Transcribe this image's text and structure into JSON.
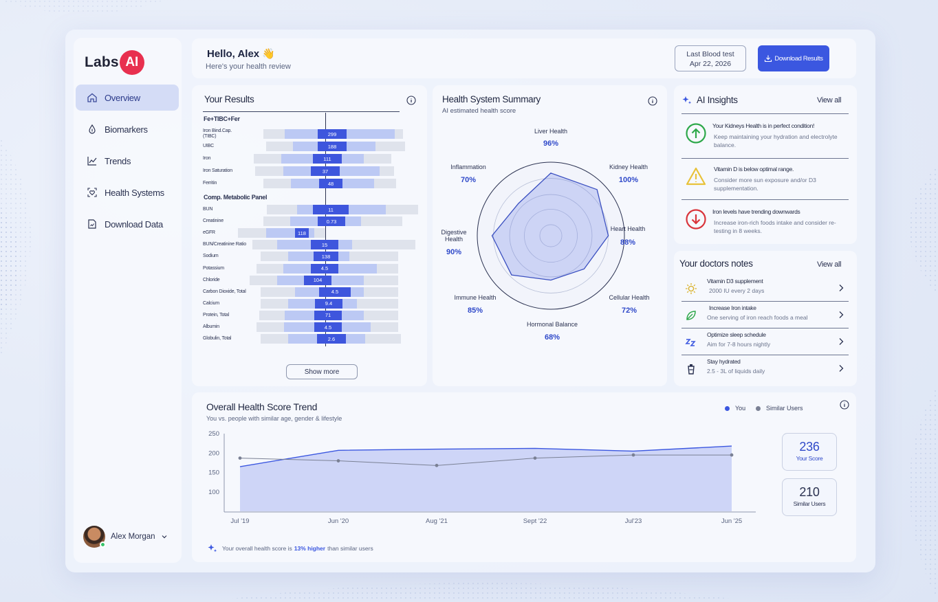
{
  "app": {
    "logo_text": "Labs",
    "logo_badge": "AI"
  },
  "sidebar": {
    "items": [
      {
        "label": "Overview",
        "icon": "home-icon",
        "active": true
      },
      {
        "label": "Biomarkers",
        "icon": "drop-icon"
      },
      {
        "label": "Trends",
        "icon": "trend-icon"
      },
      {
        "label": "Health Systems",
        "icon": "heart-scan-icon"
      },
      {
        "label": "Download Data",
        "icon": "file-icon"
      }
    ],
    "user": {
      "name": "Alex Morgan"
    }
  },
  "header": {
    "greeting": "Hello, Alex 👋",
    "subtitle": "Here's your health review",
    "last_test_label": "Last Blood test",
    "last_test_date": "Apr 22, 2026",
    "download_label": "Download Results"
  },
  "results": {
    "title": "Your Results",
    "show_more": "Show more",
    "groups": [
      {
        "label": "Fe+TIBC+Fer",
        "items": [
          {
            "name": "Iron Bind.Cap. (TIBC)",
            "value": "299"
          },
          {
            "name": "UIBC",
            "value": "188"
          },
          {
            "name": "Iron",
            "value": "111"
          },
          {
            "name": "Iron Saturation",
            "value": "37"
          },
          {
            "name": "Ferritin",
            "value": "48"
          }
        ]
      },
      {
        "label": "Comp. Metabolic Panel",
        "items": [
          {
            "name": "BUN",
            "value": "11"
          },
          {
            "name": "Creatinine",
            "value": "0.73"
          },
          {
            "name": "eGFR",
            "value": "118"
          },
          {
            "name": "BUN/Creatinine Ratio",
            "value": "15"
          },
          {
            "name": "Sodium",
            "value": "138"
          },
          {
            "name": "Potassium",
            "value": "4.5"
          },
          {
            "name": "Chloride",
            "value": "104"
          },
          {
            "name": "Carbon Dioxide, Total",
            "value": "4.5"
          },
          {
            "name": "Calcium",
            "value": "9.4"
          },
          {
            "name": "Protein, Total",
            "value": "71"
          },
          {
            "name": "Albumin",
            "value": "4.5"
          },
          {
            "name": "Globulin, Total",
            "value": "2.6"
          }
        ]
      }
    ]
  },
  "health_summary": {
    "title": "Health System Summary",
    "subtitle": "AI estimated health score",
    "systems": [
      {
        "name": "Liver Health",
        "value": "96%",
        "score": 96
      },
      {
        "name": "Kidney Health",
        "value": "100%",
        "score": 100
      },
      {
        "name": "Heart Health",
        "value": "88%",
        "score": 88
      },
      {
        "name": "Cellular Health",
        "value": "72%",
        "score": 72
      },
      {
        "name": "Hormonal Balance",
        "value": "68%",
        "score": 68
      },
      {
        "name": "Immune Health",
        "value": "85%",
        "score": 85
      },
      {
        "name": "Digestive Health",
        "value": "90%",
        "score": 90
      },
      {
        "name": "Inflammation",
        "value": "70%",
        "score": 70
      }
    ]
  },
  "insights": {
    "title": "AI Insights",
    "view_all": "View all",
    "items": [
      {
        "title": "Your Kidneys Health is in perfect condition!",
        "text": "Keep maintaining your hydration and electrolyte balance.",
        "icon": "arrow-up-circle-icon",
        "color": "#2ea84a"
      },
      {
        "title": "Vitamin D is below optimal range.",
        "text": "Consider more sun exposure and/or D3 supplementation.",
        "icon": "warning-triangle-icon",
        "color": "#e8c23a"
      },
      {
        "title": "Iron levels have trending downwards",
        "text": "Increase iron-rich foods intake and consider re-testing in 8 weeks.",
        "icon": "arrow-down-circle-icon",
        "color": "#d9343b"
      }
    ]
  },
  "notes": {
    "title": "Your doctors notes",
    "view_all": "View all",
    "items": [
      {
        "title": "Vitamin D3 supplement",
        "text": "2000 IU every 2 days",
        "icon": "sun-icon"
      },
      {
        "title": "Increase Iron intake",
        "text": "One serving of iron reach foods a meal",
        "icon": "leaf-icon"
      },
      {
        "title": "Optimize sleep schedule",
        "text": "Aim for 7-8 hours nightly",
        "icon": "sleep-icon"
      },
      {
        "title": "Stay hydrated",
        "text": "2.5 - 3L of liquids daily",
        "icon": "water-icon"
      }
    ]
  },
  "trend": {
    "title": "Overall Health Score Trend",
    "subtitle": "You vs. people with similar age, gender & lifestyle",
    "legend_you": "You",
    "legend_similar": "Similar Users",
    "your_score": "236",
    "your_score_label": "Your Score",
    "similar_score": "210",
    "similar_score_label": "Similar Users",
    "footnote_pre": "Your overall health score is",
    "footnote_bold": "13% higher",
    "footnote_post": "than similar users"
  },
  "chart_data": {
    "type": "area",
    "x": [
      "Jul '19",
      "Jun '20",
      "Aug '21",
      "Sept '22",
      "Jul'23",
      "Jun '25"
    ],
    "yticks": [
      100,
      150,
      200,
      250
    ],
    "ylim": [
      50,
      250
    ],
    "series": [
      {
        "name": "You",
        "values": [
          165,
          207,
          210,
          212,
          205,
          218
        ]
      },
      {
        "name": "Similar Users",
        "values": [
          187,
          180,
          168,
          187,
          195,
          195
        ]
      }
    ],
    "colors": {
      "you": "#3b57e0",
      "similar": "#7a8094"
    }
  }
}
